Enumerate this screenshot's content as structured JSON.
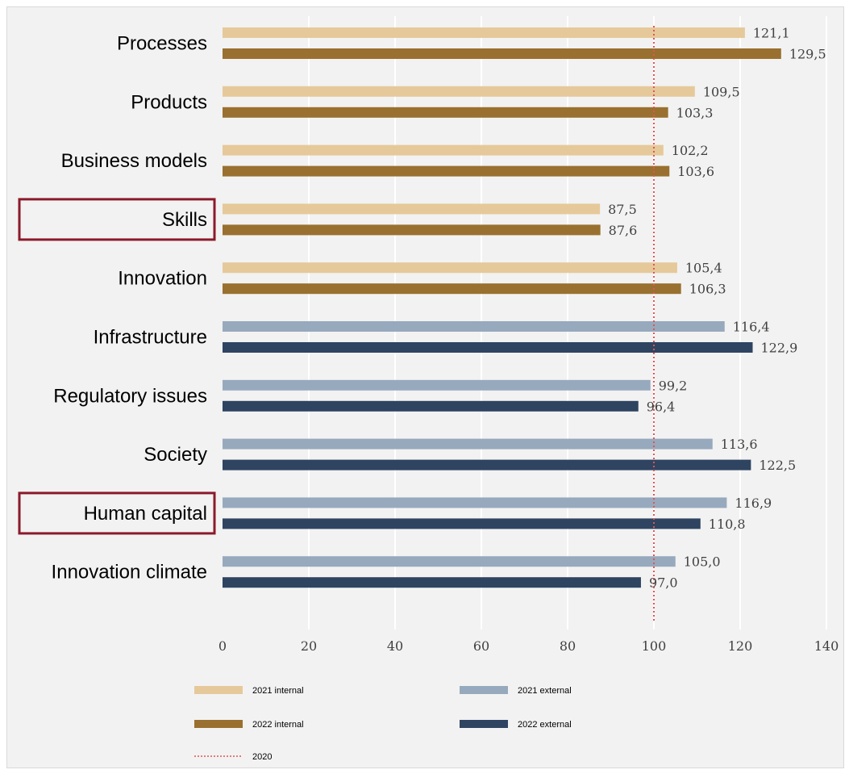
{
  "chart_data": {
    "type": "bar",
    "orientation": "horizontal",
    "categories": [
      "Processes",
      "Products",
      "Business models",
      "Skills",
      "Innovation",
      "Infrastructure",
      "Regulatory issues",
      "Society",
      "Human capital",
      "Innovation climate"
    ],
    "highlighted_categories": [
      "Skills",
      "Human capital"
    ],
    "series": [
      {
        "name": "2021 internal",
        "color": "#e6c99a",
        "values": [
          121.1,
          109.5,
          102.2,
          87.5,
          105.4,
          null,
          null,
          null,
          null,
          null
        ],
        "labels": [
          "121,1",
          "109,5",
          "102,2",
          "87,5",
          "105,4",
          null,
          null,
          null,
          null,
          null
        ]
      },
      {
        "name": "2022 internal",
        "color": "#99702f",
        "values": [
          129.5,
          103.3,
          103.6,
          87.6,
          106.3,
          null,
          null,
          null,
          null,
          null
        ],
        "labels": [
          "129,5",
          "103,3",
          "103,6",
          "87,6",
          "106,3",
          null,
          null,
          null,
          null,
          null
        ]
      },
      {
        "name": "2021 external",
        "color": "#97a9bd",
        "values": [
          null,
          null,
          null,
          null,
          null,
          116.4,
          99.2,
          113.6,
          116.9,
          105.0
        ],
        "labels": [
          null,
          null,
          null,
          null,
          null,
          "116,4",
          "99,2",
          "113,6",
          "116,9",
          "105,0"
        ]
      },
      {
        "name": "2022 external",
        "color": "#2e4461",
        "values": [
          null,
          null,
          null,
          null,
          null,
          122.9,
          96.4,
          122.5,
          110.8,
          97.0
        ],
        "labels": [
          null,
          null,
          null,
          null,
          null,
          "122,9",
          "96,4",
          "122,5",
          "110,8",
          "97,0"
        ]
      }
    ],
    "reference_line": {
      "name": "2020",
      "value": 100,
      "color": "#e05555",
      "style": "dotted"
    },
    "xlim": [
      0,
      140
    ],
    "xticks": [
      0,
      20,
      40,
      60,
      80,
      100,
      120,
      140
    ],
    "grid": "vertical",
    "legend_position": "bottom",
    "highlight_color": "#8b1a2b",
    "title": "",
    "xlabel": "",
    "ylabel": ""
  }
}
